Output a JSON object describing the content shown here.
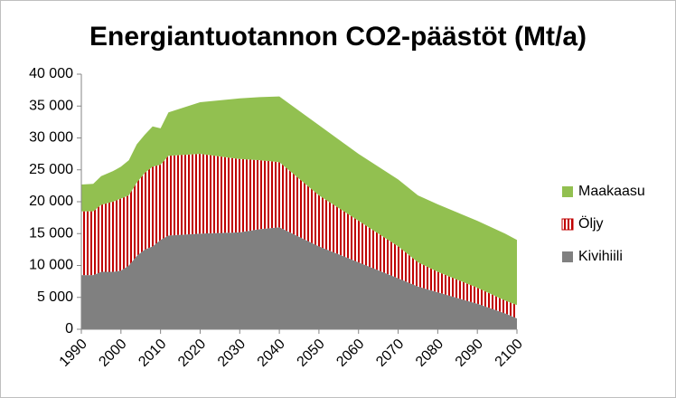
{
  "chart_data": {
    "type": "stacked_area",
    "title": "Energiantuotannon CO2-päästöt (Mt/a)",
    "x": [
      1990,
      1993,
      1995,
      1998,
      2000,
      2002,
      2004,
      2006,
      2008,
      2010,
      2012,
      2020,
      2030,
      2035,
      2040,
      2050,
      2060,
      2070,
      2075,
      2080,
      2090,
      2097,
      2100
    ],
    "series": [
      {
        "name": "Kivihiili",
        "color": "#808080",
        "pattern": "solid",
        "values": [
          8500,
          8500,
          9000,
          9000,
          9200,
          10000,
          11500,
          12500,
          13000,
          14000,
          14700,
          15000,
          15200,
          15700,
          16000,
          13000,
          10500,
          8000,
          6700,
          5800,
          4000,
          2500,
          1700
        ]
      },
      {
        "name": "Öljy",
        "color": "#c00000",
        "pattern": "vertical-stripes",
        "values": [
          10000,
          10000,
          10500,
          11000,
          11300,
          11000,
          11500,
          12000,
          12500,
          11800,
          12500,
          12500,
          11500,
          10800,
          10200,
          8000,
          6500,
          5000,
          3800,
          3200,
          2500,
          2000,
          2100
        ]
      },
      {
        "name": "Maakaasu",
        "color": "#92c050",
        "pattern": "solid",
        "values": [
          4200,
          4300,
          4500,
          4800,
          5000,
          5500,
          6000,
          6000,
          6300,
          5700,
          6800,
          8100,
          9500,
          9900,
          10300,
          11000,
          10500,
          10500,
          10500,
          10600,
          10500,
          10500,
          10200
        ]
      }
    ],
    "xlim": [
      1990,
      2100
    ],
    "xticks": [
      1990,
      2000,
      2010,
      2020,
      2030,
      2040,
      2050,
      2060,
      2070,
      2080,
      2090,
      2100
    ],
    "ylim": [
      0,
      40000
    ],
    "yticks": [
      0,
      {
        "value": 5000,
        "label": "5 000"
      },
      {
        "value": 10000,
        "label": "10 000"
      },
      {
        "value": 15000,
        "label": "15 000"
      },
      {
        "value": 20000,
        "label": "20 000"
      },
      {
        "value": 25000,
        "label": "25 000"
      },
      {
        "value": 30000,
        "label": "30 000"
      },
      {
        "value": 35000,
        "label": "35 000"
      },
      {
        "value": 40000,
        "label": "40 000"
      }
    ],
    "grid": false,
    "legend": "right"
  }
}
